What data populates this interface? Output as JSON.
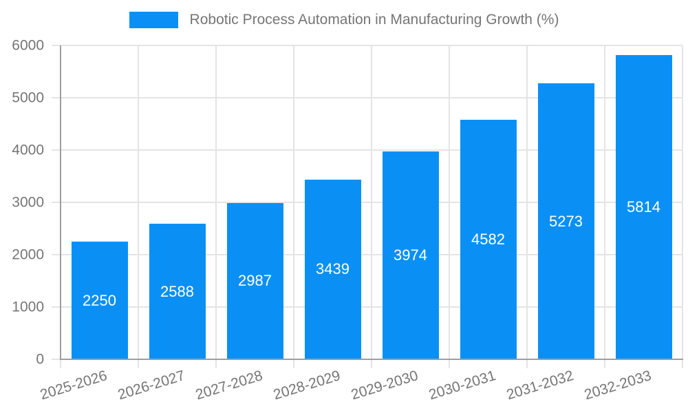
{
  "figure": {
    "background": "#ffffff"
  },
  "legend": {
    "label": "Robotic Process Automation in Manufacturing Growth (%)"
  },
  "chart_data": {
    "type": "bar",
    "title": "Robotic Process Automation in Manufacturing Growth (%)",
    "categories": [
      "2025-2026",
      "2026-2027",
      "2027-2028",
      "2028-2029",
      "2029-2030",
      "2030-2031",
      "2031-2032",
      "2032-2033"
    ],
    "values": [
      2250,
      2588,
      2987,
      3439,
      3974,
      4582,
      5273,
      5814
    ],
    "value_labels": [
      "2250",
      "2588",
      "2987",
      "3439",
      "3974",
      "4582",
      "5273",
      "5814"
    ],
    "xlabel": "",
    "ylabel": "",
    "ylim": [
      0,
      6000
    ],
    "y_tick_step": 1000,
    "y_tick_labels": [
      "0",
      "1000",
      "2000",
      "3000",
      "4000",
      "5000",
      "6000"
    ],
    "grid": "both",
    "legend_position": "top-center",
    "x_label_rotation_deg": -17,
    "colors": {
      "bar": "#0a90f5",
      "grid": "#e4e4e4",
      "axis": "#9e9e9e",
      "tick_text": "#757575",
      "bar_label_text": "#ffffff",
      "background": "#ffffff"
    }
  }
}
